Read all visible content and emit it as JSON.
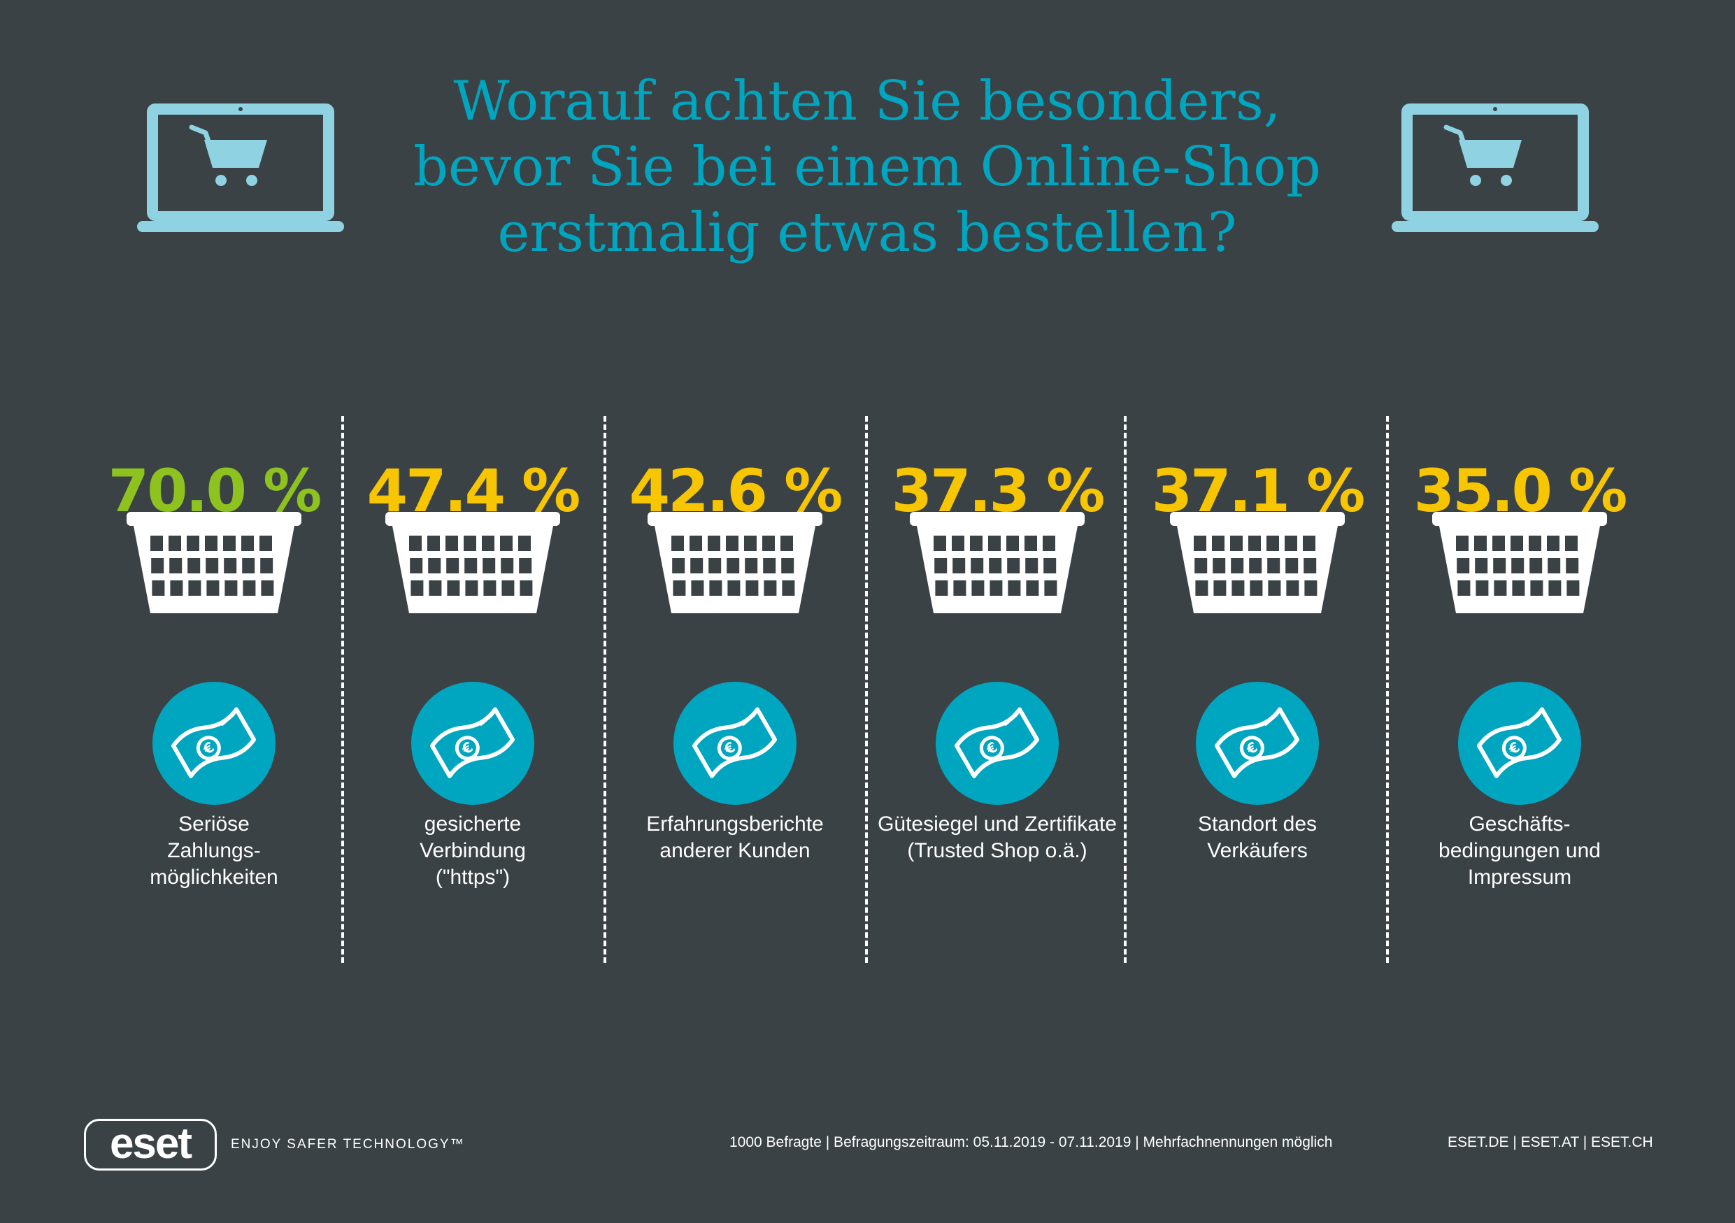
{
  "header": {
    "title_lines": [
      "Worauf achten Sie besonders,",
      "bevor Sie bei einem Online-Shop",
      "erstmalig etwas bestellen?"
    ]
  },
  "colors": {
    "background": "#3a4246",
    "accent": "#00a6bf",
    "highlight_value": "#8dc21f",
    "value": "#f7c600"
  },
  "chart_data": {
    "type": "bar",
    "unit": "%",
    "categories": [
      "Seriöse Zahlungs- möglichkeiten",
      "gesicherte Verbindung (\"https\")",
      "Erfahrungsberichte anderer Kunden",
      "Gütesiegel und Zertifikate (Trusted Shop o.ä.)",
      "Standort des Verkäufers",
      "Geschäfts- bedingungen und Impressum"
    ],
    "values": [
      70.0,
      47.4,
      42.6,
      37.3,
      37.1,
      35.0
    ],
    "value_labels": [
      "70.0 %",
      "47.4 %",
      "42.6 %",
      "37.3 %",
      "37.1 %",
      "35.0 %"
    ],
    "highlight_index": 0
  },
  "items": [
    {
      "label_lines": [
        "Seriöse",
        "Zahlungs-",
        "möglichkeiten"
      ],
      "icon": "banknote-euro-icon"
    },
    {
      "label_lines": [
        "gesicherte",
        "Verbindung",
        "(\"https\")"
      ],
      "icon": "banknote-euro-icon"
    },
    {
      "label_lines": [
        "Erfahrungsberichte",
        "anderer Kunden"
      ],
      "icon": "banknote-euro-icon"
    },
    {
      "label_lines": [
        "Gütesiegel und Zertifikate",
        "(Trusted Shop o.ä.)"
      ],
      "icon": "banknote-euro-icon"
    },
    {
      "label_lines": [
        "Standort des",
        "Verkäufers"
      ],
      "icon": "banknote-euro-icon"
    },
    {
      "label_lines": [
        "Geschäfts-",
        "bedingungen und",
        "Impressum"
      ],
      "icon": "banknote-euro-icon"
    }
  ],
  "footer": {
    "logo_text": "eset",
    "tagline": "ENJOY SAFER TECHNOLOGY™",
    "note": "1000 Befragte  |  Befragungszeitraum: 05.11.2019 - 07.11.2019  |  Mehrfachnennungen möglich",
    "sites": "ESET.DE  |  ESET.AT  |  ESET.CH"
  }
}
